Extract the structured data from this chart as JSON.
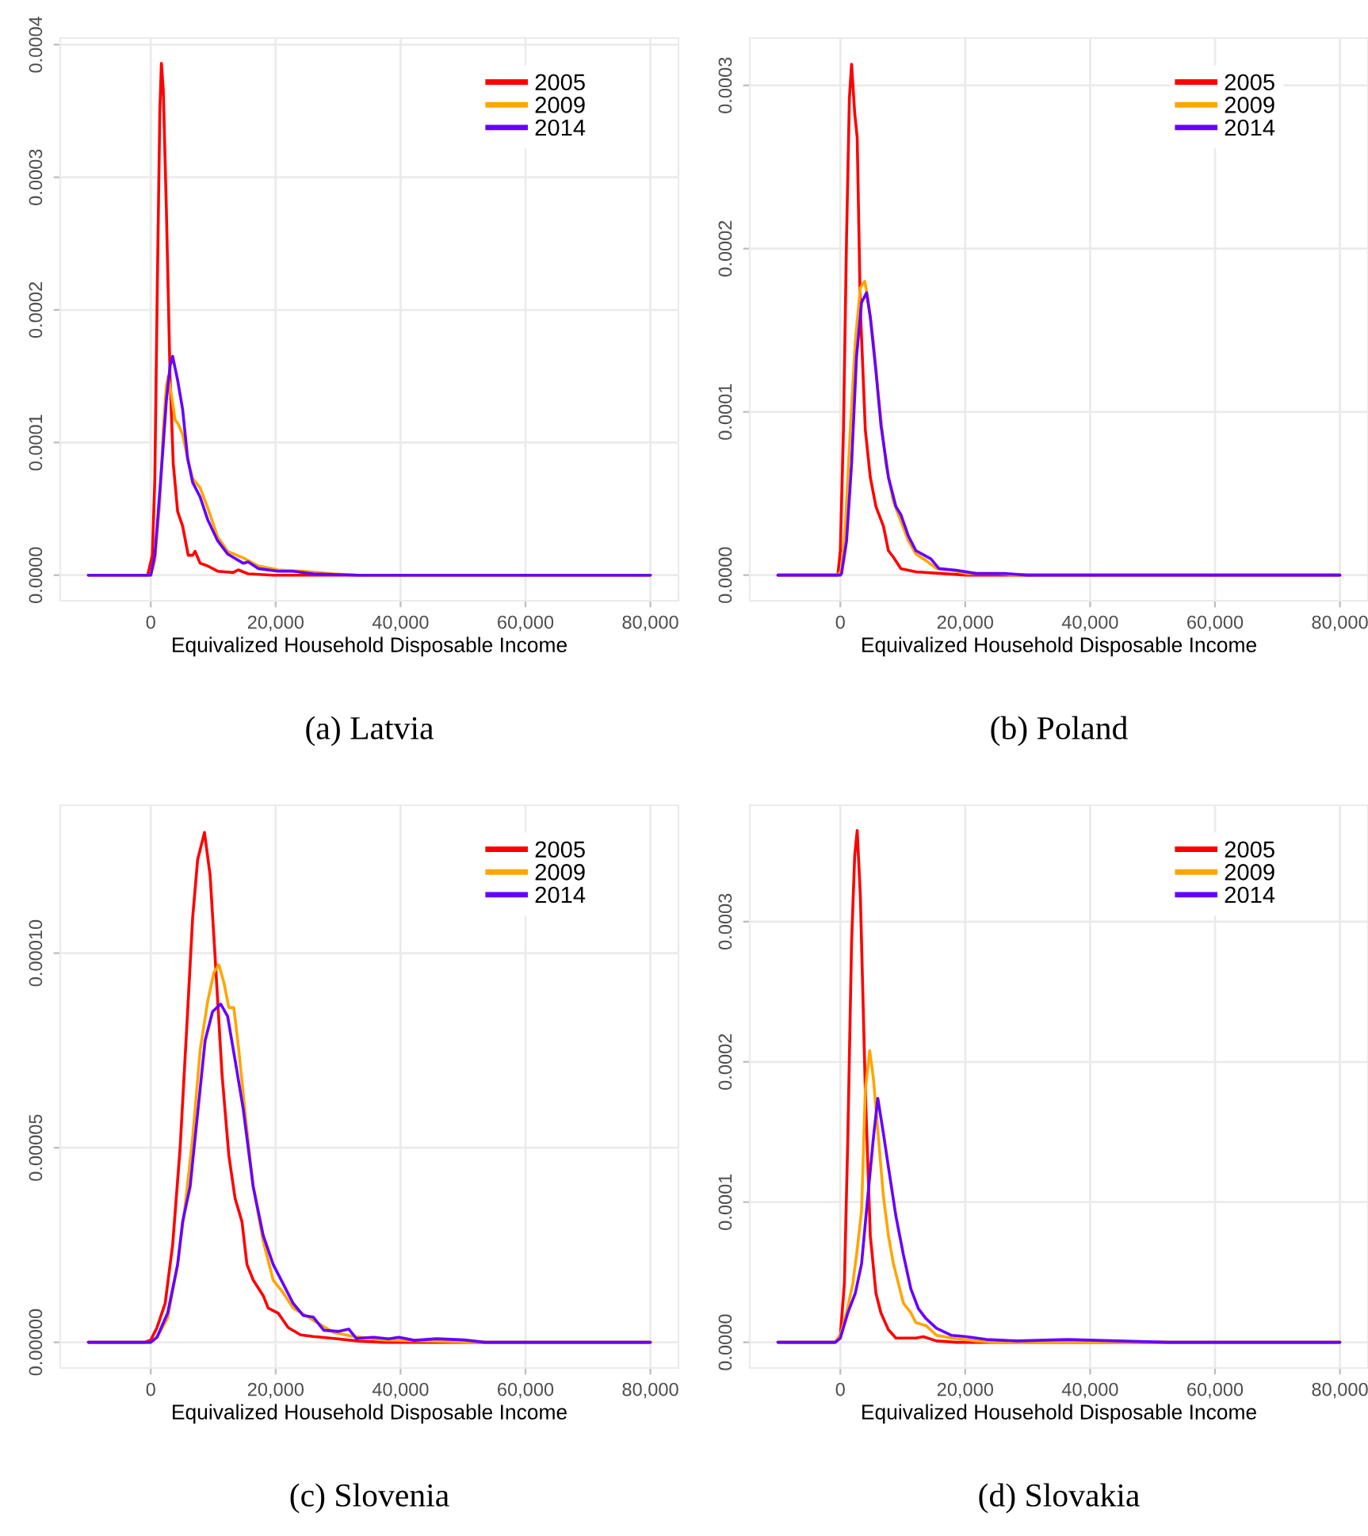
{
  "chart_data": [
    {
      "type": "line",
      "title": "(a) Latvia",
      "xlabel": "Equivalized Household Disposable Income",
      "legend": "top right",
      "grid": true,
      "xlim": [
        -14500,
        84500
      ],
      "xticks": [
        {
          "value": 0,
          "label": "0"
        },
        {
          "value": 20000,
          "label": "20,000"
        },
        {
          "value": 40000,
          "label": "40,000"
        },
        {
          "value": 60000,
          "label": "60,000"
        },
        {
          "value": 80000,
          "label": "80,000"
        }
      ],
      "ylim": [
        -1.93e-05,
        0.000405
      ],
      "yticks": [
        {
          "value": 0,
          "label": "0.0000"
        },
        {
          "value": 0.0001,
          "label": "0.0001"
        },
        {
          "value": 0.0002,
          "label": "0.0002"
        },
        {
          "value": 0.0003,
          "label": "0.0003"
        },
        {
          "value": 0.0004,
          "label": "0.0004"
        }
      ],
      "series": [
        {
          "name": "2005",
          "color": "#ff0000",
          "x": [
            -10000,
            -500,
            250,
            650,
            1050,
            1450,
            1700,
            2000,
            2500,
            3100,
            3600,
            4300,
            5100,
            6000,
            6700,
            7100,
            7900,
            9100,
            10700,
            13200,
            14000,
            15600,
            19600,
            80000
          ],
          "values": [
            0,
            0,
            1.5e-05,
            7.3e-05,
            0.00022,
            0.00035,
            0.000386,
            0.000366,
            0.000275,
            0.000147,
            8.4e-05,
            4.8e-05,
            3.7e-05,
            1.5e-05,
            1.5e-05,
            1.8e-05,
            9e-06,
            7e-06,
            3e-06,
            2e-06,
            4e-06,
            1e-06,
            0,
            0
          ]
        },
        {
          "name": "2009",
          "color": "#ffa500",
          "x": [
            -10000,
            0,
            650,
            1450,
            2000,
            2500,
            2800,
            3300,
            3900,
            4400,
            5100,
            5900,
            6700,
            7900,
            9100,
            10700,
            12300,
            14800,
            17200,
            20400,
            24500,
            29300,
            33300,
            80000
          ],
          "values": [
            0,
            0,
            1.1e-05,
            5.5e-05,
            0.00011,
            0.000143,
            0.00015,
            0.000136,
            0.000117,
            0.000114,
            0.000106,
            8.8e-05,
            7.3e-05,
            6.6e-05,
            5.1e-05,
            2.9e-05,
            1.8e-05,
            1.3e-05,
            7e-06,
            4e-06,
            3e-06,
            1e-06,
            0,
            0
          ]
        },
        {
          "name": "2014",
          "color": "#6600ff",
          "x": [
            -10000,
            0,
            650,
            1200,
            1900,
            2500,
            3100,
            3500,
            4300,
            5100,
            5900,
            6700,
            7900,
            9100,
            10700,
            12300,
            14800,
            15600,
            17200,
            20400,
            22800,
            26000,
            33300,
            80000
          ],
          "values": [
            0,
            0,
            1.5e-05,
            4.8e-05,
            9.2e-05,
            0.000132,
            0.000158,
            0.000165,
            0.000147,
            0.000125,
            8.8e-05,
            7e-05,
            5.9e-05,
            4.2e-05,
            2.6e-05,
            1.6e-05,
            9e-06,
            1e-05,
            5e-06,
            3e-06,
            3e-06,
            1e-06,
            0,
            0
          ]
        }
      ]
    },
    {
      "type": "line",
      "title": "(b) Poland",
      "xlabel": "Equivalized Household Disposable Income",
      "legend": "top right",
      "grid": true,
      "xlim": [
        -14500,
        84500
      ],
      "xticks": [
        {
          "value": 0,
          "label": "0"
        },
        {
          "value": 20000,
          "label": "20,000"
        },
        {
          "value": 40000,
          "label": "40,000"
        },
        {
          "value": 60000,
          "label": "60,000"
        },
        {
          "value": 80000,
          "label": "80,000"
        }
      ],
      "ylim": [
        -1.57e-05,
        0.000329
      ],
      "yticks": [
        {
          "value": 0,
          "label": "0.0000"
        },
        {
          "value": 0.0001,
          "label": "0.0001"
        },
        {
          "value": 0.0002,
          "label": "0.0002"
        },
        {
          "value": 0.0003,
          "label": "0.0003"
        }
      ],
      "series": [
        {
          "name": "2005",
          "color": "#ff0000",
          "x": [
            -10000,
            -400,
            0,
            500,
            1000,
            1450,
            1800,
            2300,
            2700,
            3200,
            4000,
            4800,
            5700,
            6900,
            7700,
            8500,
            9700,
            12100,
            16200,
            20200,
            80000
          ],
          "values": [
            0,
            0,
            1.5e-05,
            8.9e-05,
            0.000208,
            0.000292,
            0.000313,
            0.000283,
            0.000268,
            0.000164,
            8.9e-05,
            6e-05,
            4.2e-05,
            3e-05,
            1.5e-05,
            1.1e-05,
            4e-06,
            2e-06,
            1e-06,
            0,
            0
          ]
        },
        {
          "name": "2009",
          "color": "#ffa500",
          "x": [
            -10000,
            -400,
            200,
            800,
            1600,
            2400,
            3200,
            3900,
            4400,
            5300,
            6100,
            7300,
            8500,
            9700,
            10900,
            12100,
            13700,
            15400,
            17800,
            20200,
            25100,
            28300,
            80000
          ],
          "values": [
            0,
            0,
            3e-06,
            3e-05,
            8.9e-05,
            0.000143,
            0.000176,
            0.00018,
            0.00017,
            0.000143,
            0.00011,
            6.8e-05,
            4.5e-05,
            3.3e-05,
            2.1e-05,
            1.3e-05,
            9e-06,
            4e-06,
            3e-06,
            1e-06,
            1e-06,
            0,
            0
          ]
        },
        {
          "name": "2014",
          "color": "#6600ff",
          "x": [
            -10000,
            0,
            200,
            1000,
            1800,
            2600,
            3400,
            4200,
            4800,
            5700,
            6500,
            7700,
            8900,
            9700,
            10900,
            12100,
            14500,
            15800,
            18600,
            21800,
            26300,
            29900,
            80000
          ],
          "values": [
            0,
            0,
            1e-06,
            2.1e-05,
            6.8e-05,
            0.000134,
            0.000167,
            0.000173,
            0.000158,
            0.000125,
            9.2e-05,
            6e-05,
            4.2e-05,
            3.7e-05,
            2.4e-05,
            1.5e-05,
            1e-05,
            4e-06,
            3e-06,
            1e-06,
            1e-06,
            0,
            0
          ]
        }
      ]
    },
    {
      "type": "line",
      "title": "(c) Slovenia",
      "xlabel": "Equivalized Household Disposable Income",
      "legend": "top right",
      "grid": true,
      "xlim": [
        -14500,
        84500
      ],
      "xticks": [
        {
          "value": 0,
          "label": "0"
        },
        {
          "value": 20000,
          "label": "20,000"
        },
        {
          "value": 40000,
          "label": "40,000"
        },
        {
          "value": 60000,
          "label": "60,000"
        },
        {
          "value": 80000,
          "label": "80,000"
        }
      ],
      "ylim": [
        -6.6e-06,
        0.000138
      ],
      "yticks": [
        {
          "value": 0,
          "label": "0.00000"
        },
        {
          "value": 5e-05,
          "label": "0.00005"
        },
        {
          "value": 0.0001,
          "label": "0.00010"
        }
      ],
      "series": [
        {
          "name": "2005",
          "color": "#ff0000",
          "x": [
            -10000,
            -1000,
            0,
            1000,
            2300,
            3500,
            4700,
            5900,
            6700,
            7500,
            8600,
            9500,
            10300,
            11400,
            12500,
            13500,
            14600,
            15400,
            16400,
            18000,
            18800,
            20400,
            22000,
            24000,
            26000,
            29300,
            33300,
            37300,
            80000
          ],
          "values": [
            0,
            0,
            6e-07,
            3.8e-06,
            1e-05,
            2.5e-05,
            5e-05,
            8.5e-05,
            0.000109,
            0.000124,
            0.000131,
            0.00012,
            9.9e-05,
            6.9e-05,
            4.8e-05,
            3.7e-05,
            3.1e-05,
            2e-05,
            1.6e-05,
            1.2e-05,
            8.8e-06,
            7.5e-06,
            3.8e-06,
            1.9e-06,
            1.5e-06,
            1e-06,
            3e-07,
            0,
            0
          ]
        },
        {
          "name": "2009",
          "color": "#ffa500",
          "x": [
            -10000,
            0,
            1000,
            2700,
            4300,
            5500,
            6700,
            7900,
            9100,
            10100,
            10900,
            11700,
            12500,
            13300,
            14100,
            15200,
            16400,
            18000,
            19600,
            21300,
            22800,
            24800,
            26900,
            29300,
            32500,
            37300,
            45400,
            53500,
            80000
          ],
          "values": [
            0,
            0,
            1.3e-06,
            6.2e-06,
            2e-05,
            3.5e-05,
            5.25e-05,
            7.5e-05,
            8.75e-05,
            9.5e-05,
            9.7e-05,
            9.25e-05,
            8.6e-05,
            8.6e-05,
            7.5e-05,
            5.75e-05,
            4e-05,
            2.6e-05,
            1.6e-05,
            1.25e-05,
            8.8e-06,
            6.9e-06,
            4.8e-06,
            2.5e-06,
            1.5e-06,
            6e-07,
            3e-07,
            0,
            0
          ]
        },
        {
          "name": "2014",
          "color": "#6600ff",
          "x": [
            -10000,
            0,
            1000,
            2700,
            4300,
            5100,
            6300,
            7500,
            8700,
            9900,
            11200,
            12300,
            13500,
            14800,
            16400,
            18000,
            19600,
            21200,
            22800,
            24400,
            26000,
            27700,
            30100,
            31700,
            32900,
            35700,
            38100,
            39700,
            42200,
            45800,
            50200,
            53500,
            80000
          ],
          "values": [
            0,
            0,
            1.3e-06,
            7.5e-06,
            2e-05,
            3.1e-05,
            4e-05,
            5.88e-05,
            7.75e-05,
            8.5e-05,
            8.69e-05,
            8.38e-05,
            7.25e-05,
            6e-05,
            4e-05,
            2.75e-05,
            2e-05,
            1.5e-05,
            1e-05,
            6.9e-06,
            6.5e-06,
            3.1e-06,
            2.8e-06,
            3.4e-06,
            1e-06,
            1.3e-06,
            9e-07,
            1.3e-06,
            5e-07,
            9e-07,
            6e-07,
            0,
            0
          ]
        }
      ]
    },
    {
      "type": "line",
      "title": "(d) Slovakia",
      "xlabel": "Equivalized Household Disposable Income",
      "legend": "top right",
      "grid": true,
      "xlim": [
        -14500,
        84500
      ],
      "xticks": [
        {
          "value": 0,
          "label": "0"
        },
        {
          "value": 20000,
          "label": "20,000"
        },
        {
          "value": 40000,
          "label": "40,000"
        },
        {
          "value": 60000,
          "label": "60,000"
        },
        {
          "value": 80000,
          "label": "80,000"
        }
      ],
      "ylim": [
        -1.83e-05,
        0.000383
      ],
      "yticks": [
        {
          "value": 0,
          "label": "0.0000"
        },
        {
          "value": 0.0001,
          "label": "0.0001"
        },
        {
          "value": 0.0002,
          "label": "0.0002"
        },
        {
          "value": 0.0003,
          "label": "0.0003"
        }
      ],
      "series": [
        {
          "name": "2005",
          "color": "#ff0000",
          "x": [
            -10000,
            -800,
            0,
            650,
            1200,
            1800,
            2300,
            2700,
            3200,
            4000,
            4800,
            5700,
            6500,
            7700,
            8900,
            10500,
            12100,
            13300,
            15400,
            18600,
            80000
          ],
          "values": [
            0,
            0,
            5e-06,
            4.2e-05,
            0.000146,
            0.000285,
            0.000347,
            0.000365,
            0.000319,
            0.00018,
            7.6e-05,
            3.5e-05,
            2.1e-05,
            9e-06,
            3e-06,
            3e-06,
            3e-06,
            4e-06,
            1e-06,
            0,
            0
          ]
        },
        {
          "name": "2009",
          "color": "#ffa500",
          "x": [
            -10000,
            -800,
            0,
            1000,
            2000,
            2700,
            3400,
            4000,
            4700,
            5300,
            6100,
            6900,
            7700,
            8500,
            10100,
            11300,
            12100,
            13700,
            15400,
            17800,
            21800,
            25100,
            80000
          ],
          "values": [
            0,
            0,
            5e-06,
            2.1e-05,
            4.2e-05,
            6.6e-05,
            9.4e-05,
            0.00018,
            0.000208,
            0.000188,
            0.000146,
            0.000104,
            7.6e-05,
            5.6e-05,
            2.8e-05,
            2.1e-05,
            1.4e-05,
            1.2e-05,
            5e-06,
            3e-06,
            1e-06,
            0,
            0
          ]
        },
        {
          "name": "2014",
          "color": "#6600ff",
          "x": [
            -10000,
            -800,
            0,
            1200,
            2400,
            3400,
            4400,
            5300,
            6000,
            6900,
            7700,
            8900,
            10100,
            11300,
            12500,
            13700,
            15400,
            17800,
            20200,
            23400,
            28300,
            36400,
            44400,
            52500,
            80000
          ],
          "values": [
            0,
            0,
            3e-06,
            2.1e-05,
            3.5e-05,
            5.6e-05,
            0.000104,
            0.000146,
            0.000174,
            0.000149,
            0.000125,
            9e-05,
            6.25e-05,
            3.8e-05,
            2.4e-05,
            1.7e-05,
            1e-05,
            5e-06,
            4e-06,
            2e-06,
            1e-06,
            2e-06,
            1e-06,
            0,
            0
          ]
        }
      ]
    }
  ]
}
